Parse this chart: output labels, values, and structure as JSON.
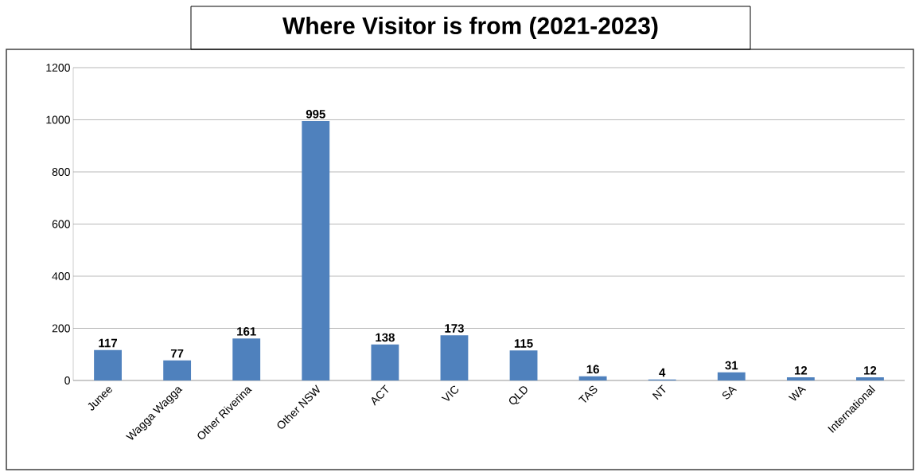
{
  "chart_data": {
    "type": "bar",
    "title": "Where Visitor is from (2021-2023)",
    "categories": [
      "Junee",
      "Wagga Wagga",
      "Other Riverina",
      "Other NSW",
      "ACT",
      "VIC",
      "QLD",
      "TAS",
      "NT",
      "SA",
      "WA",
      "International"
    ],
    "values": [
      117,
      77,
      161,
      995,
      138,
      173,
      115,
      16,
      4,
      31,
      12,
      12
    ],
    "color": "#4f81bd",
    "ylim": [
      0,
      1200
    ],
    "yticks": [
      0,
      200,
      400,
      600,
      800,
      1000,
      1200
    ],
    "grid": "y",
    "data_labels": true
  }
}
